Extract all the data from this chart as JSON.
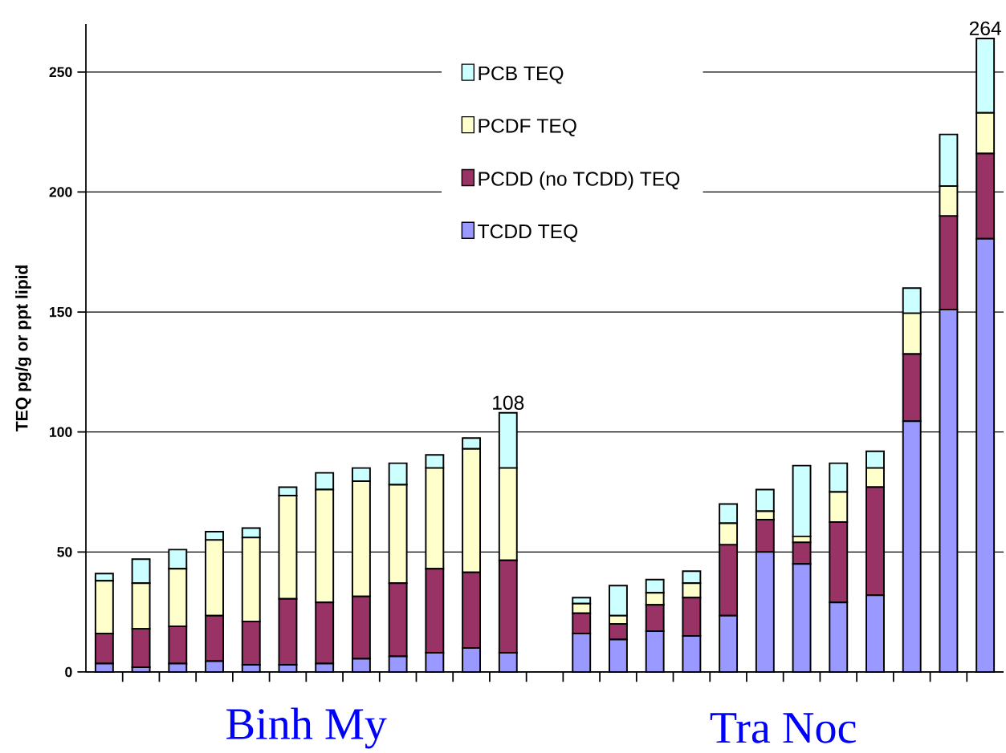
{
  "chart_data": {
    "type": "bar",
    "stacked": true,
    "ylabel": "TEQ pg/g or ppt lipid",
    "categories": [
      null,
      null,
      null,
      null,
      null,
      null,
      null,
      null,
      null,
      null,
      null,
      null,
      null,
      null,
      null,
      null,
      null,
      null,
      null,
      null,
      null,
      null,
      null,
      null,
      null
    ],
    "series": [
      {
        "name": "TCDD TEQ",
        "color": "#9999ff",
        "values": [
          3.5,
          2,
          3.5,
          4.5,
          3,
          3,
          3.5,
          5.5,
          6.5,
          8,
          10,
          8,
          null,
          16,
          13.5,
          17,
          15,
          23.5,
          50,
          45,
          29,
          32,
          104.5,
          151,
          180.5
        ]
      },
      {
        "name": "PCDD (no TCDD) TEQ",
        "color": "#993366",
        "values": [
          12.5,
          16,
          15.5,
          19,
          18,
          27.5,
          25.5,
          26,
          30.5,
          35,
          31.5,
          38.5,
          null,
          8.5,
          6.5,
          11,
          16,
          29.5,
          13.5,
          9,
          33.5,
          45,
          28,
          39,
          35.5
        ]
      },
      {
        "name": "PCDF TEQ",
        "color": "#ffffcc",
        "values": [
          22,
          19,
          24,
          31.5,
          35,
          43,
          47,
          48,
          41,
          42,
          51.5,
          38.5,
          null,
          4,
          3.5,
          5,
          6,
          9,
          3.5,
          2.5,
          12.5,
          8,
          17,
          12.5,
          17
        ]
      },
      {
        "name": "PCB TEQ",
        "color": "#ccffff",
        "values": [
          3,
          10,
          8,
          3.5,
          4,
          3.5,
          7,
          5.5,
          9,
          5.5,
          4.5,
          23,
          null,
          2.5,
          12.5,
          5.5,
          5,
          8,
          9,
          29.5,
          12,
          7,
          10.5,
          21.5,
          31
        ]
      }
    ],
    "totals": [
      null,
      null,
      null,
      null,
      null,
      null,
      null,
      null,
      null,
      null,
      null,
      "108",
      null,
      null,
      null,
      null,
      null,
      null,
      null,
      null,
      null,
      null,
      null,
      null,
      "264"
    ],
    "ylim": [
      0,
      270
    ],
    "yticks": [
      0,
      50,
      100,
      150,
      200,
      250
    ],
    "grid": "y",
    "legend": "top",
    "annotations": [
      "Binh My",
      "Tra Noc"
    ]
  }
}
